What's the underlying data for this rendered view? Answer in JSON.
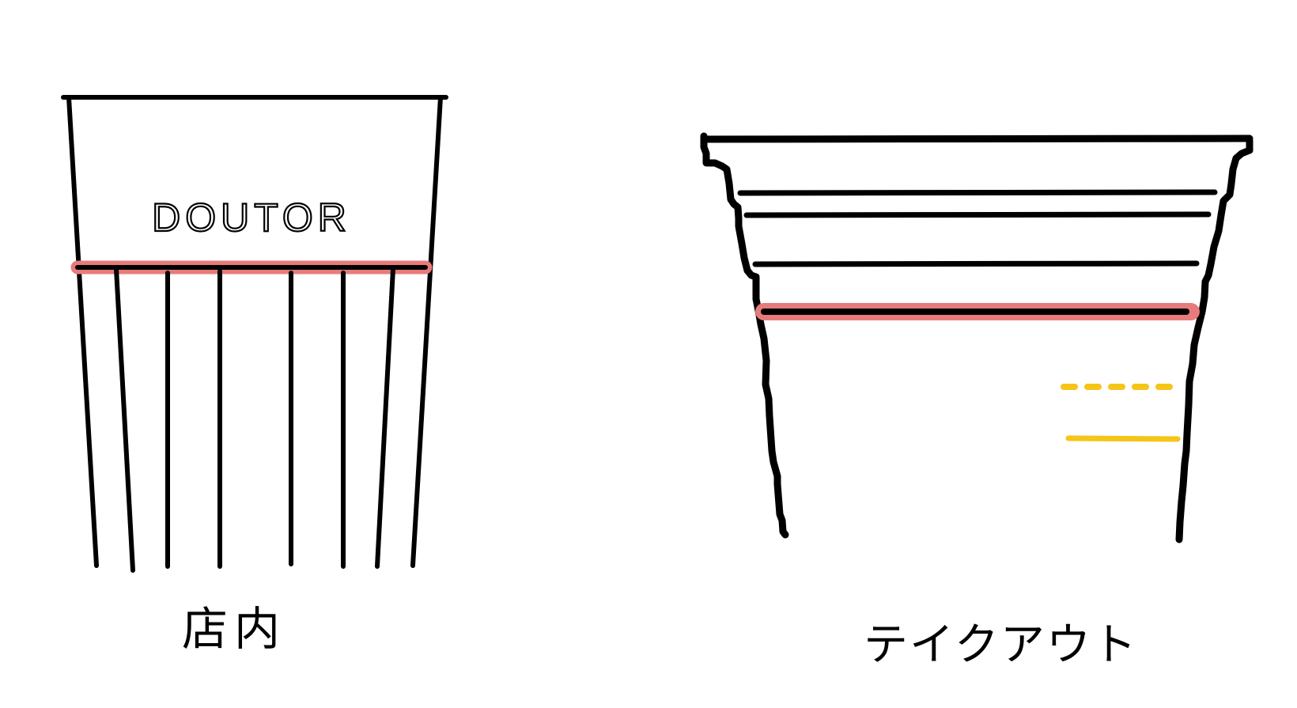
{
  "cups": {
    "instore": {
      "brand": "DOUTOR",
      "caption": "店内"
    },
    "takeout": {
      "caption": "テイクアウト"
    }
  },
  "colors": {
    "outline": "#000000",
    "highlight": "#e77b7b",
    "guide": "#f5c518",
    "background": "#ffffff"
  }
}
